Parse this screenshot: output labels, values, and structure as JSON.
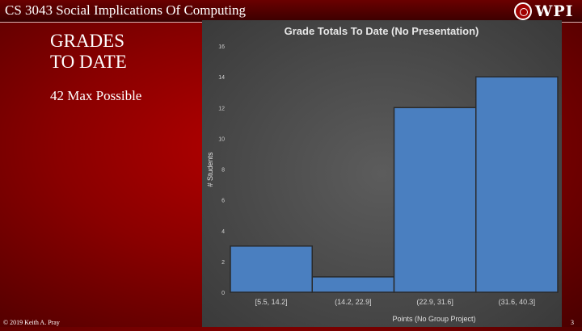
{
  "header": {
    "course_title": "CS 3043 Social Implications Of Computing",
    "logo_text": "WPI"
  },
  "slide": {
    "title": "GRADES\nTO DATE",
    "subtitle": "42 Max Possible"
  },
  "footer": {
    "copyright": "© 2019 Keith A. Pray",
    "slide_number": "3"
  },
  "chart_data": {
    "type": "bar",
    "title": "Grade Totals To Date (No Presentation)",
    "xlabel": "Points (No Group Project)",
    "ylabel": "# Students",
    "categories": [
      "[5.5, 14.2]",
      "(14.2, 22.9]",
      "(22.9, 31.6]",
      "(31.6, 40.3]"
    ],
    "values": [
      3,
      1,
      12,
      14
    ],
    "ylim": [
      0,
      16
    ],
    "yticks": [
      0,
      2,
      4,
      6,
      8,
      10,
      12,
      14,
      16
    ],
    "grid": false,
    "bar_color": "#4a7fc0"
  }
}
